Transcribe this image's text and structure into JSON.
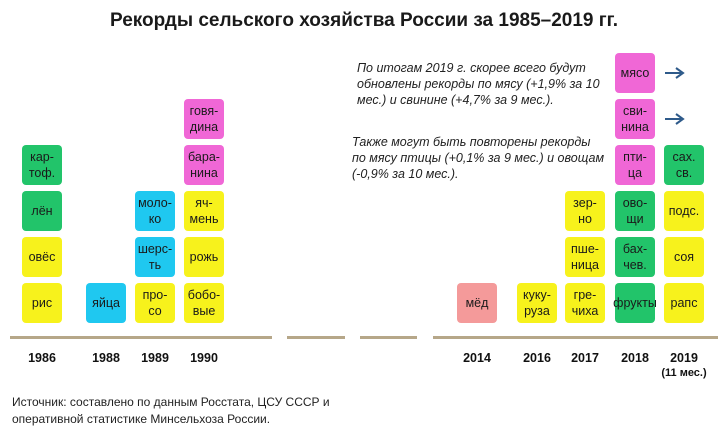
{
  "title": "Рекорды сельского хозяйства России за 1985–2019 гг.",
  "note_2019_main": "По итогам 2019 г. скорее всего будут обновлены рекорды по мясу (+1,9% за 10 мес.) и свинине (+4,7% за 9 мес.).",
  "note_2019_possible": "Также могут быть повторены рекорды по мясу птицы (+0,1% за 9 мес.) и овощам (-0,9% за 10 мес.).",
  "source": "Источник: составлено по данным Росстата, ЦСУ СССР и оперативной статистике Минсельхоза России.",
  "colors": {
    "green": "#22c46a",
    "yellow": "#f7f21c",
    "cyan": "#1fc8f0",
    "magenta": "#f067d6",
    "pink": "#f49a9a",
    "baseline": "#b6a789",
    "arrow": "#2e5a8a"
  },
  "chart_data": {
    "type": "table",
    "years": [
      {
        "year": "1986",
        "note": "",
        "records": [
          {
            "label": "рис",
            "color": "yellow"
          },
          {
            "label": "овёс",
            "color": "yellow"
          },
          {
            "label": "лён",
            "color": "green"
          },
          {
            "label": "кар-\nтоф.",
            "color": "green"
          }
        ]
      },
      {
        "year": "1988",
        "note": "",
        "records": [
          {
            "label": "яйца",
            "color": "cyan"
          }
        ]
      },
      {
        "year": "1989",
        "note": "",
        "records": [
          {
            "label": "про-\nсо",
            "color": "yellow"
          },
          {
            "label": "шерс-\nть",
            "color": "cyan"
          },
          {
            "label": "моло-\nко",
            "color": "cyan"
          }
        ]
      },
      {
        "year": "1990",
        "note": "",
        "records": [
          {
            "label": "бобо-\nвые",
            "color": "yellow"
          },
          {
            "label": "рожь",
            "color": "yellow"
          },
          {
            "label": "яч-\nмень",
            "color": "yellow"
          },
          {
            "label": "бара-\nнина",
            "color": "magenta"
          },
          {
            "label": "говя-\nдина",
            "color": "magenta"
          }
        ]
      },
      {
        "year": "2014",
        "note": "",
        "records": [
          {
            "label": "мёд",
            "color": "pink"
          }
        ]
      },
      {
        "year": "2016",
        "note": "",
        "records": [
          {
            "label": "куку-\nруза",
            "color": "yellow"
          }
        ]
      },
      {
        "year": "2017",
        "note": "",
        "records": [
          {
            "label": "гре-\nчиха",
            "color": "yellow"
          },
          {
            "label": "пше-\nница",
            "color": "yellow"
          },
          {
            "label": "зер-\nно",
            "color": "yellow"
          }
        ]
      },
      {
        "year": "2018",
        "note": "",
        "records": [
          {
            "label": "фрукты",
            "color": "green"
          },
          {
            "label": "бах-\nчев.",
            "color": "green"
          },
          {
            "label": "ово-\nщи",
            "color": "green"
          },
          {
            "label": "пти-\nца",
            "color": "magenta"
          },
          {
            "label": "сви-\nнина",
            "color": "magenta"
          },
          {
            "label": "мясо",
            "color": "magenta"
          }
        ]
      },
      {
        "year": "2019",
        "note": "(11 мес.)",
        "records": [
          {
            "label": "рапс",
            "color": "yellow"
          },
          {
            "label": "соя",
            "color": "yellow"
          },
          {
            "label": "подс.",
            "color": "yellow"
          },
          {
            "label": "сах.\nсв.",
            "color": "green"
          }
        ]
      }
    ],
    "arrows_on": [
      "мясо",
      "сви-\nнина"
    ]
  }
}
